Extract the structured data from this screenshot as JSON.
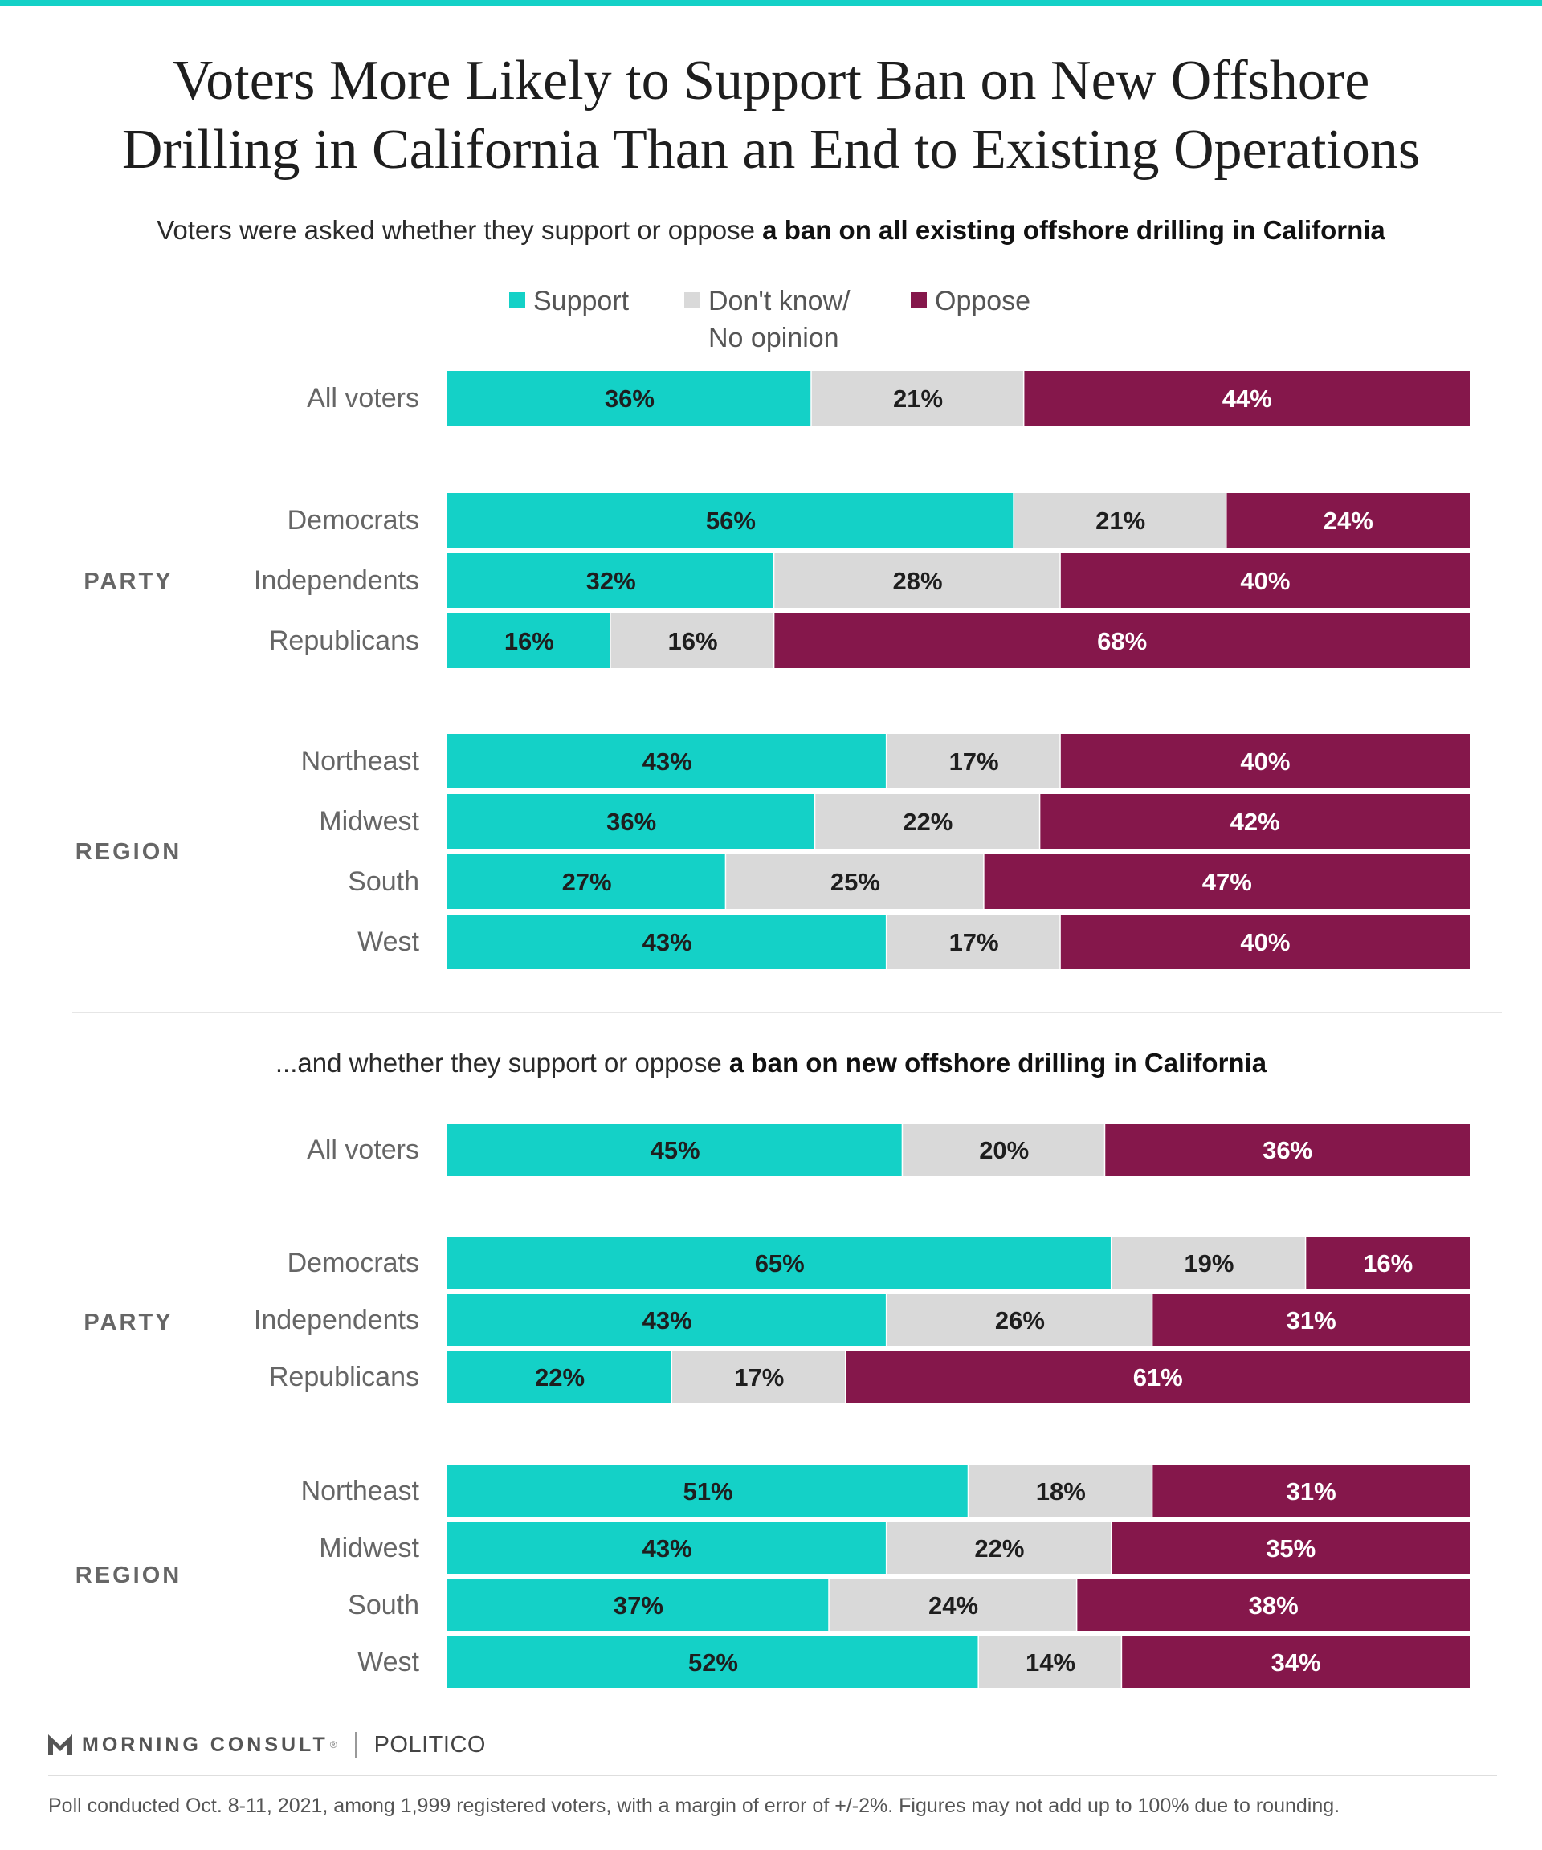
{
  "title_line1": "Voters More Likely to Support Ban on New Offshore",
  "title_line2": "Drilling in California Than an End to Existing Operations",
  "subtitle1": {
    "pre": "Voters were asked whether they support or oppose ",
    "bold": "a ban on all existing offshore drilling in California"
  },
  "subtitle2": {
    "pre": "...and whether they support or oppose ",
    "bold": "a ban on new offshore drilling in California"
  },
  "legend": {
    "support": "Support",
    "dont_know_line1": "Don't know/",
    "dont_know_line2": "No opinion",
    "oppose": "Oppose"
  },
  "colors": {
    "support": "#14d1c7",
    "dont_know": "#d9d9d9",
    "oppose": "#85174b",
    "group_label": "#666666",
    "row_label": "#666666"
  },
  "branding": {
    "morning_consult": "MORNING CONSULT",
    "trademark": "®",
    "politico": "POLITICO"
  },
  "footnote": "Poll conducted Oct. 8-11, 2021, among 1,999 registered voters, with a margin of error of +/-2%. Figures may not add up to 100% due to rounding.",
  "chart_data": [
    {
      "type": "bar",
      "orientation": "horizontal-stacked-100",
      "title": "a ban on all existing offshore drilling in California",
      "series_names": [
        "Support",
        "Don't know/ No opinion",
        "Oppose"
      ],
      "groups": [
        {
          "group": "",
          "rows": [
            {
              "label": "All voters",
              "values": [
                36,
                21,
                44
              ]
            }
          ]
        },
        {
          "group": "PARTY",
          "rows": [
            {
              "label": "Democrats",
              "values": [
                56,
                21,
                24
              ]
            },
            {
              "label": "Independents",
              "values": [
                32,
                28,
                40
              ]
            },
            {
              "label": "Republicans",
              "values": [
                16,
                16,
                68
              ]
            }
          ]
        },
        {
          "group": "REGION",
          "rows": [
            {
              "label": "Northeast",
              "values": [
                43,
                17,
                40
              ]
            },
            {
              "label": "Midwest",
              "values": [
                36,
                22,
                42
              ]
            },
            {
              "label": "South",
              "values": [
                27,
                25,
                47
              ]
            },
            {
              "label": "West",
              "values": [
                43,
                17,
                40
              ]
            }
          ]
        }
      ]
    },
    {
      "type": "bar",
      "orientation": "horizontal-stacked-100",
      "title": "a ban on new offshore drilling in California",
      "series_names": [
        "Support",
        "Don't know/ No opinion",
        "Oppose"
      ],
      "groups": [
        {
          "group": "",
          "rows": [
            {
              "label": "All voters",
              "values": [
                45,
                20,
                36
              ]
            }
          ]
        },
        {
          "group": "PARTY",
          "rows": [
            {
              "label": "Democrats",
              "values": [
                65,
                19,
                16
              ]
            },
            {
              "label": "Independents",
              "values": [
                43,
                26,
                31
              ]
            },
            {
              "label": "Republicans",
              "values": [
                22,
                17,
                61
              ]
            }
          ]
        },
        {
          "group": "REGION",
          "rows": [
            {
              "label": "Northeast",
              "values": [
                51,
                18,
                31
              ]
            },
            {
              "label": "Midwest",
              "values": [
                43,
                22,
                35
              ]
            },
            {
              "label": "South",
              "values": [
                37,
                24,
                38
              ]
            },
            {
              "label": "West",
              "values": [
                52,
                14,
                34
              ]
            }
          ]
        }
      ]
    }
  ]
}
